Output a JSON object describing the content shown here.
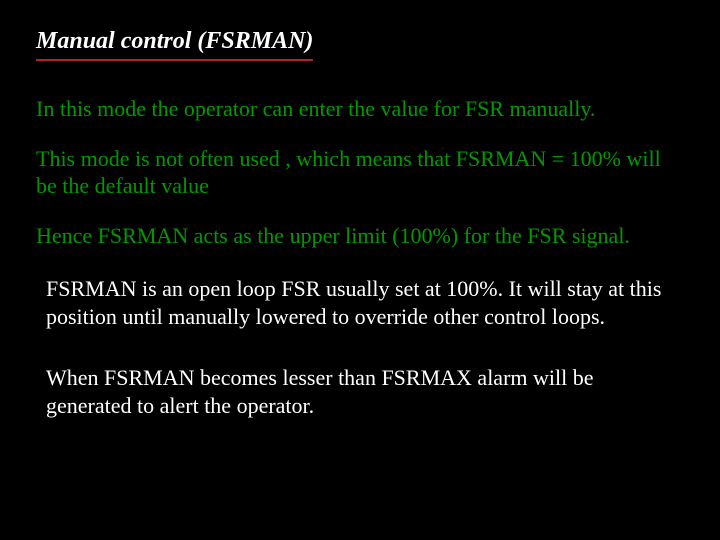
{
  "colors": {
    "background": "#000000",
    "title_text": "#ffffff",
    "underline": "#b22222",
    "body_green": "#009900",
    "body_white": "#ffffff"
  },
  "typography": {
    "family": "Times New Roman",
    "title_fontsize_pt": 18,
    "title_italic": true,
    "title_bold": true,
    "body_fontsize_pt": 16
  },
  "title": "Manual control (FSRMAN)",
  "paragraphs": [
    {
      "text": "In this mode the operator can enter the value for FSR manually.",
      "color": "green",
      "indent": false
    },
    {
      "text": "This mode is not often used , which means that FSRMAN = 100% will be the default value",
      "color": "green",
      "indent": false
    },
    {
      "text": "Hence FSRMAN acts as the upper limit (100%) for the FSR signal.",
      "color": "green",
      "indent": false
    },
    {
      "text": "FSRMAN is an open loop FSR usually set at 100%. It will stay at this position until manually lowered to override other control loops.",
      "color": "white",
      "indent": true
    },
    {
      "text": "When FSRMAN becomes lesser than FSRMAX alarm will be generated to alert the operator.",
      "color": "white",
      "indent": true
    }
  ]
}
